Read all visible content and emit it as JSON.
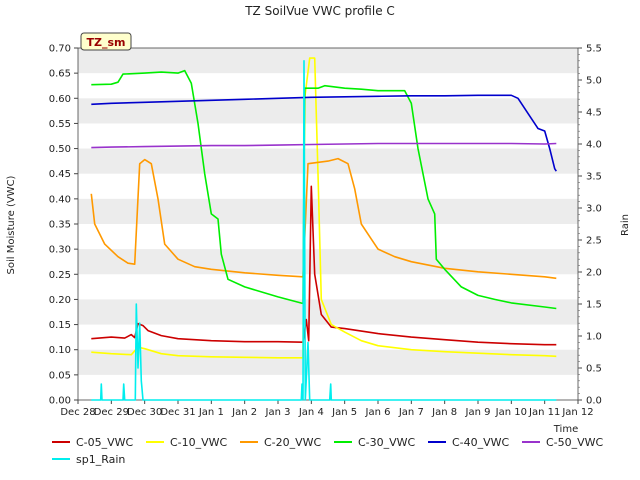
{
  "chart_data": {
    "type": "line",
    "title": "TZ SoilVue VWC profile C",
    "station_label": "TZ_sm",
    "xlabel": "Time",
    "ylabel": "Soil Moisture (VWC)",
    "y2label": "Rain",
    "ylim": [
      0,
      0.7
    ],
    "y2lim": [
      0,
      5.5
    ],
    "x_ticks": [
      "Dec 28",
      "Dec 29",
      "Dec 30",
      "Dec 31",
      "Jan 1",
      "Jan 2",
      "Jan 3",
      "Jan 4",
      "Jan 5",
      "Jan 6",
      "Jan 7",
      "Jan 8",
      "Jan 9",
      "Jan 10",
      "Jan 11",
      "Jan 12"
    ],
    "y_ticks": [
      "0.00",
      "0.05",
      "0.10",
      "0.15",
      "0.20",
      "0.25",
      "0.30",
      "0.35",
      "0.40",
      "0.45",
      "0.50",
      "0.55",
      "0.60",
      "0.65",
      "0.70"
    ],
    "y2_ticks": [
      "0.0",
      "0.5",
      "1.0",
      "1.5",
      "2.0",
      "2.5",
      "3.0",
      "3.5",
      "4.0",
      "4.5",
      "5.0",
      "5.5"
    ],
    "grid": "horizontal bands",
    "legend_position": "bottom",
    "series": [
      {
        "name": "C-05_VWC",
        "color": "#cc0000",
        "axis": "left",
        "points": [
          [
            0.4,
            0.122
          ],
          [
            1.0,
            0.125
          ],
          [
            1.4,
            0.123
          ],
          [
            1.6,
            0.13
          ],
          [
            1.7,
            0.124
          ],
          [
            1.8,
            0.152
          ],
          [
            1.95,
            0.148
          ],
          [
            2.1,
            0.138
          ],
          [
            2.5,
            0.128
          ],
          [
            3.0,
            0.122
          ],
          [
            4.0,
            0.118
          ],
          [
            5.0,
            0.116
          ],
          [
            6.0,
            0.116
          ],
          [
            6.75,
            0.115
          ],
          [
            6.85,
            0.16
          ],
          [
            6.92,
            0.118
          ],
          [
            7.0,
            0.425
          ],
          [
            7.1,
            0.25
          ],
          [
            7.3,
            0.17
          ],
          [
            7.6,
            0.145
          ],
          [
            8.0,
            0.142
          ],
          [
            9.0,
            0.132
          ],
          [
            10.0,
            0.125
          ],
          [
            11.0,
            0.12
          ],
          [
            12.0,
            0.115
          ],
          [
            13.0,
            0.112
          ],
          [
            14.0,
            0.11
          ],
          [
            14.35,
            0.11
          ]
        ]
      },
      {
        "name": "C-10_VWC",
        "color": "#ffff00",
        "axis": "left",
        "points": [
          [
            0.4,
            0.095
          ],
          [
            1.0,
            0.092
          ],
          [
            1.6,
            0.09
          ],
          [
            1.8,
            0.105
          ],
          [
            2.0,
            0.102
          ],
          [
            2.5,
            0.092
          ],
          [
            3.0,
            0.088
          ],
          [
            4.0,
            0.086
          ],
          [
            5.0,
            0.085
          ],
          [
            6.0,
            0.084
          ],
          [
            6.75,
            0.084
          ],
          [
            6.8,
            0.6
          ],
          [
            6.95,
            0.68
          ],
          [
            7.1,
            0.68
          ],
          [
            7.2,
            0.45
          ],
          [
            7.3,
            0.2
          ],
          [
            7.6,
            0.15
          ],
          [
            8.0,
            0.135
          ],
          [
            8.5,
            0.118
          ],
          [
            9.0,
            0.108
          ],
          [
            10.0,
            0.1
          ],
          [
            11.0,
            0.096
          ],
          [
            12.0,
            0.093
          ],
          [
            13.0,
            0.09
          ],
          [
            14.0,
            0.088
          ],
          [
            14.35,
            0.087
          ]
        ]
      },
      {
        "name": "C-20_VWC",
        "color": "#ff9900",
        "axis": "left",
        "points": [
          [
            0.4,
            0.41
          ],
          [
            0.5,
            0.35
          ],
          [
            0.8,
            0.31
          ],
          [
            1.2,
            0.285
          ],
          [
            1.5,
            0.272
          ],
          [
            1.7,
            0.27
          ],
          [
            1.85,
            0.47
          ],
          [
            2.0,
            0.478
          ],
          [
            2.2,
            0.47
          ],
          [
            2.4,
            0.4
          ],
          [
            2.6,
            0.31
          ],
          [
            3.0,
            0.28
          ],
          [
            3.5,
            0.265
          ],
          [
            4.0,
            0.26
          ],
          [
            5.0,
            0.253
          ],
          [
            6.0,
            0.248
          ],
          [
            6.75,
            0.245
          ],
          [
            6.9,
            0.47
          ],
          [
            7.5,
            0.475
          ],
          [
            7.8,
            0.48
          ],
          [
            8.1,
            0.47
          ],
          [
            8.3,
            0.42
          ],
          [
            8.5,
            0.35
          ],
          [
            8.8,
            0.32
          ],
          [
            9.0,
            0.3
          ],
          [
            9.5,
            0.285
          ],
          [
            10.0,
            0.275
          ],
          [
            11.0,
            0.262
          ],
          [
            12.0,
            0.255
          ],
          [
            13.0,
            0.25
          ],
          [
            14.0,
            0.245
          ],
          [
            14.35,
            0.242
          ]
        ]
      },
      {
        "name": "C-30_VWC",
        "color": "#00ee00",
        "axis": "left",
        "points": [
          [
            0.4,
            0.627
          ],
          [
            1.0,
            0.628
          ],
          [
            1.2,
            0.632
          ],
          [
            1.35,
            0.648
          ],
          [
            2.0,
            0.65
          ],
          [
            2.5,
            0.652
          ],
          [
            3.0,
            0.65
          ],
          [
            3.2,
            0.655
          ],
          [
            3.4,
            0.63
          ],
          [
            3.6,
            0.55
          ],
          [
            3.8,
            0.45
          ],
          [
            4.0,
            0.37
          ],
          [
            4.2,
            0.36
          ],
          [
            4.3,
            0.29
          ],
          [
            4.5,
            0.24
          ],
          [
            5.0,
            0.225
          ],
          [
            6.0,
            0.205
          ],
          [
            6.75,
            0.192
          ],
          [
            6.8,
            0.62
          ],
          [
            7.2,
            0.62
          ],
          [
            7.4,
            0.625
          ],
          [
            8.0,
            0.62
          ],
          [
            8.5,
            0.618
          ],
          [
            9.0,
            0.615
          ],
          [
            9.8,
            0.615
          ],
          [
            10.0,
            0.59
          ],
          [
            10.2,
            0.5
          ],
          [
            10.5,
            0.4
          ],
          [
            10.7,
            0.37
          ],
          [
            10.75,
            0.28
          ],
          [
            11.0,
            0.26
          ],
          [
            11.5,
            0.225
          ],
          [
            12.0,
            0.208
          ],
          [
            12.5,
            0.2
          ],
          [
            13.0,
            0.193
          ],
          [
            14.0,
            0.185
          ],
          [
            14.35,
            0.182
          ]
        ]
      },
      {
        "name": "C-40_VWC",
        "color": "#0000cc",
        "axis": "left",
        "points": [
          [
            0.4,
            0.588
          ],
          [
            1.0,
            0.59
          ],
          [
            2.0,
            0.592
          ],
          [
            3.0,
            0.594
          ],
          [
            4.0,
            0.596
          ],
          [
            5.0,
            0.598
          ],
          [
            6.0,
            0.6
          ],
          [
            7.0,
            0.602
          ],
          [
            8.0,
            0.603
          ],
          [
            9.0,
            0.604
          ],
          [
            10.0,
            0.605
          ],
          [
            11.0,
            0.605
          ],
          [
            12.0,
            0.606
          ],
          [
            13.0,
            0.606
          ],
          [
            13.2,
            0.6
          ],
          [
            13.5,
            0.57
          ],
          [
            13.8,
            0.54
          ],
          [
            14.0,
            0.535
          ],
          [
            14.15,
            0.5
          ],
          [
            14.3,
            0.46
          ],
          [
            14.35,
            0.455
          ]
        ]
      },
      {
        "name": "C-50_VWC",
        "color": "#9933cc",
        "axis": "left",
        "points": [
          [
            0.4,
            0.502
          ],
          [
            1.0,
            0.503
          ],
          [
            2.0,
            0.504
          ],
          [
            3.0,
            0.505
          ],
          [
            4.0,
            0.506
          ],
          [
            5.0,
            0.506
          ],
          [
            6.0,
            0.507
          ],
          [
            7.0,
            0.508
          ],
          [
            8.0,
            0.509
          ],
          [
            9.0,
            0.51
          ],
          [
            10.0,
            0.51
          ],
          [
            11.0,
            0.51
          ],
          [
            12.0,
            0.51
          ],
          [
            13.0,
            0.51
          ],
          [
            14.0,
            0.509
          ],
          [
            14.35,
            0.51
          ]
        ]
      },
      {
        "name": "sp1_Rain",
        "color": "#00eeee",
        "axis": "right",
        "points": [
          [
            0.4,
            0
          ],
          [
            0.68,
            0
          ],
          [
            0.7,
            0.25
          ],
          [
            0.72,
            0
          ],
          [
            1.35,
            0
          ],
          [
            1.37,
            0.25
          ],
          [
            1.4,
            0
          ],
          [
            1.72,
            0
          ],
          [
            1.75,
            1.5
          ],
          [
            1.8,
            0.5
          ],
          [
            1.85,
            1.2
          ],
          [
            1.9,
            0.3
          ],
          [
            1.95,
            0
          ],
          [
            6.7,
            0
          ],
          [
            6.72,
            0.25
          ],
          [
            6.75,
            0
          ],
          [
            6.78,
            5.3
          ],
          [
            6.82,
            0
          ],
          [
            6.9,
            0.9
          ],
          [
            6.95,
            0
          ],
          [
            7.55,
            0
          ],
          [
            7.58,
            0.25
          ],
          [
            7.6,
            0
          ],
          [
            14.35,
            0
          ]
        ]
      }
    ]
  }
}
